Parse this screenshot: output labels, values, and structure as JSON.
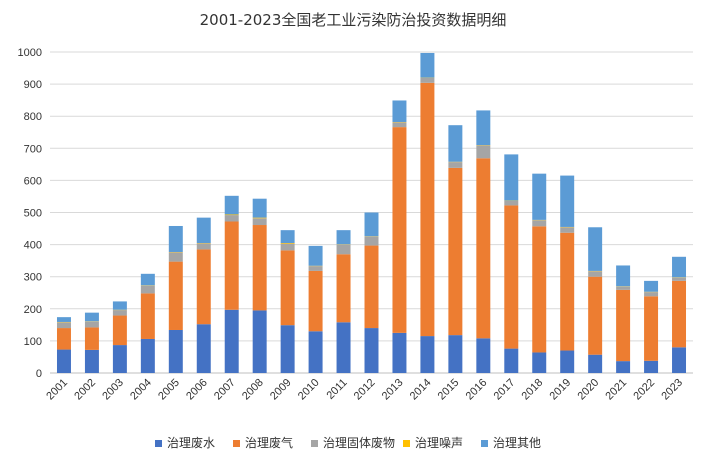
{
  "chart_data": {
    "type": "bar",
    "stacked": true,
    "title": "2001-2023全国老工业污染防治投资数据明细",
    "xlabel": "",
    "ylabel": "",
    "ylim": [
      0,
      1000
    ],
    "yticks": [
      "0",
      "100",
      "200",
      "300",
      "400",
      "500",
      "600",
      "700",
      "800",
      "900",
      "1000"
    ],
    "grid": true,
    "legend_position": "bottom",
    "categories": [
      "2001",
      "2002",
      "2003",
      "2004",
      "2005",
      "2006",
      "2007",
      "2008",
      "2009",
      "2010",
      "2011",
      "2012",
      "2013",
      "2014",
      "2015",
      "2016",
      "2017",
      "2018",
      "2019",
      "2020",
      "2021",
      "2022",
      "2023"
    ],
    "series": [
      {
        "name": "治理废水",
        "color": "#4472c4",
        "values": [
          73,
          72,
          87,
          106,
          134,
          152,
          197,
          195,
          149,
          130,
          158,
          140,
          125,
          115,
          118,
          108,
          76,
          64,
          70,
          57,
          37,
          38,
          80
        ]
      },
      {
        "name": "治理废气",
        "color": "#ed7d31",
        "values": [
          67,
          70,
          92,
          142,
          213,
          233,
          275,
          266,
          233,
          188,
          212,
          257,
          641,
          789,
          521,
          561,
          446,
          393,
          367,
          243,
          222,
          201,
          207
        ]
      },
      {
        "name": "治理固体废物",
        "color": "#a5a5a5",
        "values": [
          18,
          18,
          17,
          24,
          29,
          19,
          20,
          21,
          21,
          15,
          30,
          28,
          15,
          15,
          18,
          40,
          14,
          19,
          17,
          17,
          10,
          13,
          10
        ]
      },
      {
        "name": "治理噪声",
        "color": "#ffc000",
        "values": [
          1,
          1,
          1,
          1,
          1,
          1,
          2,
          2,
          2,
          1,
          1,
          1,
          1,
          1,
          1,
          1,
          1,
          1,
          1,
          1,
          1,
          1,
          1
        ]
      },
      {
        "name": "治理其他",
        "color": "#5b9bd5",
        "values": [
          15,
          27,
          26,
          36,
          81,
          79,
          58,
          59,
          40,
          62,
          44,
          74,
          67,
          77,
          114,
          108,
          144,
          144,
          160,
          136,
          65,
          34,
          64
        ]
      }
    ]
  }
}
